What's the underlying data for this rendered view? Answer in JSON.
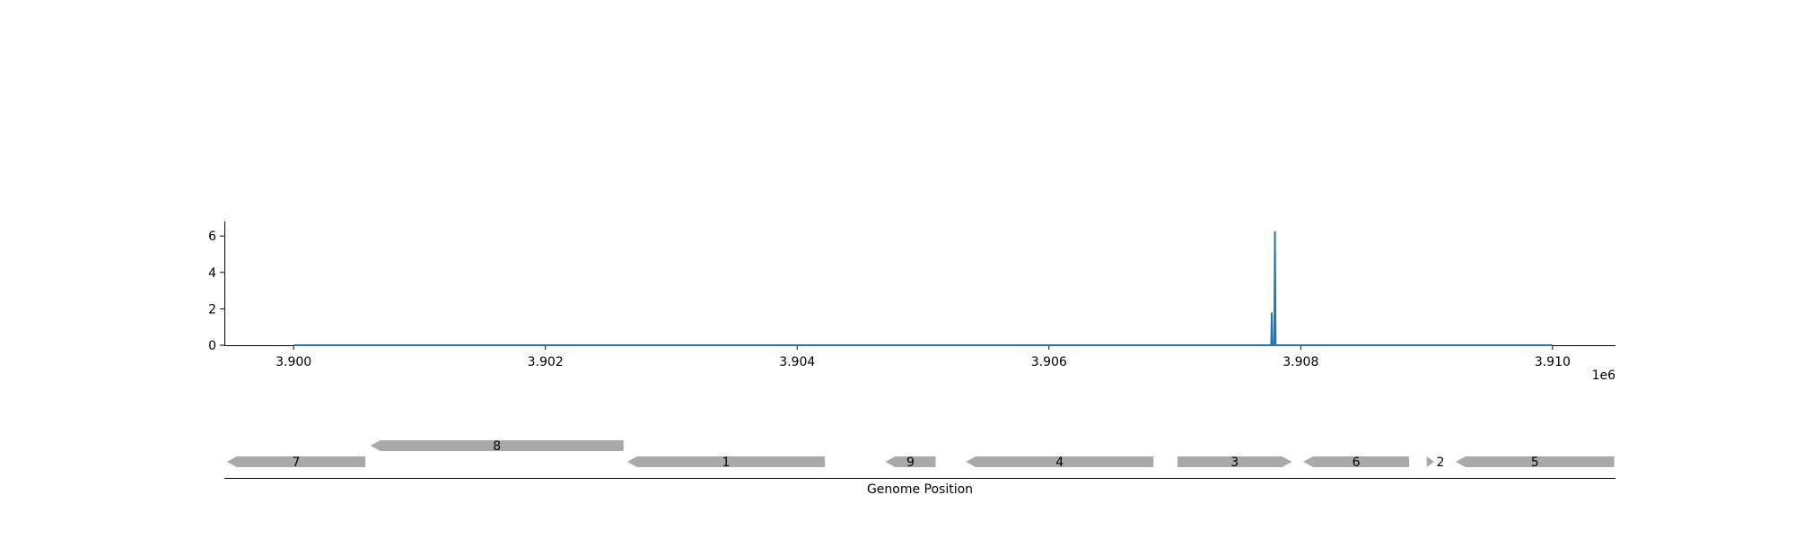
{
  "chart_data": {
    "type": "line",
    "xlabel": "Genome Position",
    "x_offset_label": "1e6",
    "xlim": [
      3899450,
      3910500
    ],
    "ylim": [
      0,
      6.8
    ],
    "x_ticks": [
      3900000,
      3902000,
      3904000,
      3906000,
      3908000,
      3910000
    ],
    "x_tick_labels": [
      "3.900",
      "3.902",
      "3.904",
      "3.906",
      "3.908",
      "3.910"
    ],
    "y_ticks": [
      0,
      2,
      4,
      6
    ],
    "y_tick_labels": [
      "0",
      "2",
      "4",
      "6"
    ],
    "series": [
      {
        "color": "#1f77b4",
        "points": [
          [
            3900000,
            0
          ],
          [
            3907765,
            0
          ],
          [
            3907770,
            1.8
          ],
          [
            3907775,
            0
          ],
          [
            3907790,
            0
          ],
          [
            3907795,
            6.25
          ],
          [
            3907800,
            0
          ],
          [
            3910000,
            0
          ]
        ]
      }
    ],
    "genes": [
      {
        "label": "7",
        "start": 3899470,
        "end": 3900570,
        "strand": "-",
        "row": 0
      },
      {
        "label": "8",
        "start": 3900610,
        "end": 3902620,
        "strand": "-",
        "row": 1
      },
      {
        "label": "1",
        "start": 3902650,
        "end": 3904220,
        "strand": "-",
        "row": 0
      },
      {
        "label": "9",
        "start": 3904700,
        "end": 3905100,
        "strand": "-",
        "row": 0
      },
      {
        "label": "4",
        "start": 3905340,
        "end": 3906830,
        "strand": "-",
        "row": 0
      },
      {
        "label": "3",
        "start": 3907020,
        "end": 3907930,
        "strand": "+",
        "row": 0
      },
      {
        "label": "6",
        "start": 3908020,
        "end": 3908860,
        "strand": "-",
        "row": 0
      },
      {
        "label": "2",
        "start": 3909000,
        "end": 3909060,
        "strand": "+",
        "row": 0
      },
      {
        "label": "5",
        "start": 3909230,
        "end": 3910490,
        "strand": "-",
        "row": 0
      }
    ],
    "gene_color": "#a9a9a9"
  }
}
